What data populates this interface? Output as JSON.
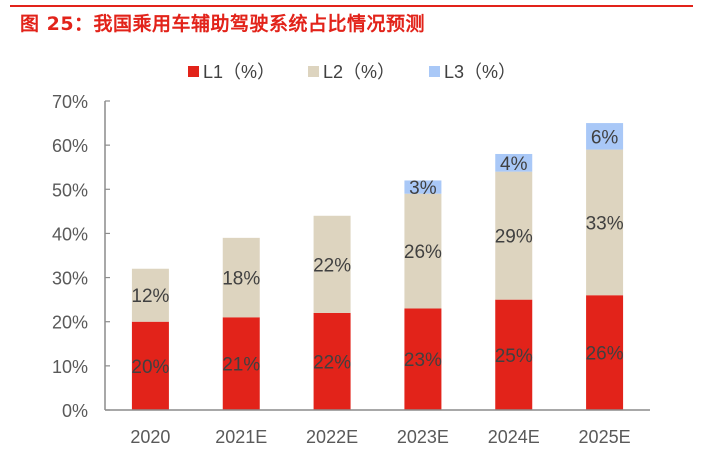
{
  "header": {
    "title": "图 25：我国乘用车辅助驾驶系统占比情况预测"
  },
  "chart_data": {
    "type": "bar",
    "stacked": true,
    "title": "图 25：我国乘用车辅助驾驶系统占比情况预测",
    "xlabel": "",
    "ylabel": "",
    "categories": [
      "2020",
      "2021E",
      "2022E",
      "2023E",
      "2024E",
      "2025E"
    ],
    "series": [
      {
        "name": "L1（%）",
        "color": "#e2231a",
        "values": [
          20,
          21,
          22,
          23,
          25,
          26
        ],
        "labels": [
          "20%",
          "21%",
          "22%",
          "23%",
          "25%",
          "26%"
        ]
      },
      {
        "name": "L2（%）",
        "color": "#ddd4bf",
        "values": [
          12,
          18,
          22,
          26,
          29,
          33
        ],
        "labels": [
          "12%",
          "18%",
          "22%",
          "26%",
          "29%",
          "33%"
        ]
      },
      {
        "name": "L3（%）",
        "color": "#a9c8f7",
        "values": [
          0,
          0,
          0,
          3,
          4,
          6
        ],
        "labels": [
          "",
          "",
          "",
          "3%",
          "4%",
          "6%"
        ]
      }
    ],
    "ylim": [
      0,
      70
    ],
    "yticks": [
      0,
      10,
      20,
      30,
      40,
      50,
      60,
      70
    ],
    "ytick_labels": [
      "0%",
      "10%",
      "20%",
      "30%",
      "40%",
      "50%",
      "60%",
      "70%"
    ],
    "grid": false,
    "legend_position": "top-center"
  }
}
